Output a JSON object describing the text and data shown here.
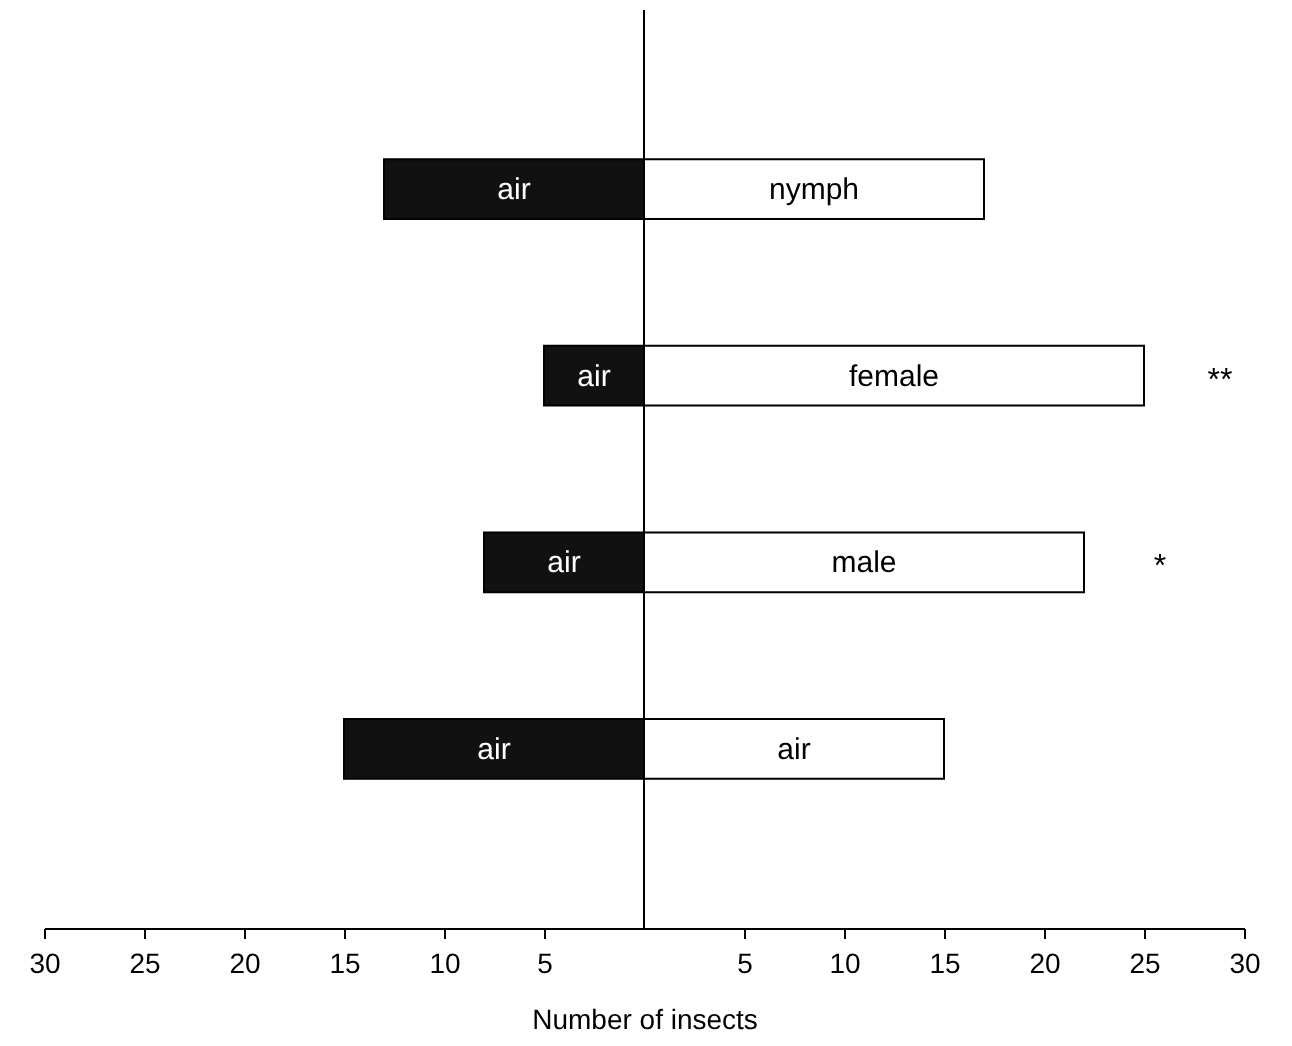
{
  "chart_data": {
    "type": "bar",
    "orientation": "horizontal",
    "stacked": true,
    "categories": [
      "nymph",
      "female",
      "male",
      "air"
    ],
    "series": [
      {
        "color": "#111111",
        "values": [
          -13,
          -5,
          -8,
          -15
        ],
        "value_labels": [
          "air",
          "air",
          "air",
          "air"
        ]
      },
      {
        "color": "#ffffff",
        "values": [
          17,
          25,
          22,
          15
        ]
      }
    ],
    "xlabel": "Number of insects",
    "xlim": [
      -30,
      30
    ],
    "xticks": [
      {
        "value": -30,
        "label": "30"
      },
      {
        "value": -25,
        "label": "25"
      },
      {
        "value": -20,
        "label": "20"
      },
      {
        "value": -15,
        "label": "15"
      },
      {
        "value": -10,
        "label": "10"
      },
      {
        "value": -5,
        "label": "5"
      },
      5,
      10,
      15,
      20,
      25,
      30
    ],
    "annotations": [
      "**",
      "*"
    ],
    "ref_lines": [
      {
        "axis": "x",
        "value": 0,
        "color": "#000000"
      }
    ],
    "tick_labels": "x",
    "grid": false,
    "legend": false
  }
}
